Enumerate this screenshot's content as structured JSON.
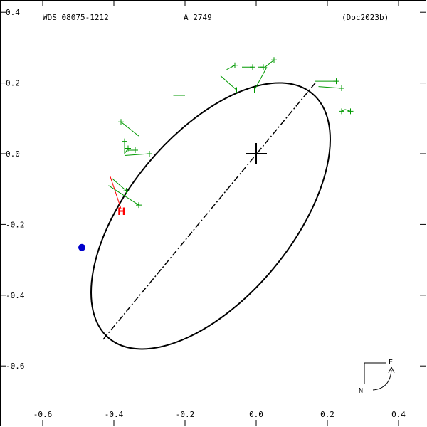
{
  "header": {
    "left": "WDS 08075-1212",
    "center": "A  2749",
    "right": "(Doc2023b)"
  },
  "compass": {
    "east_label": "E",
    "north_label": "N"
  },
  "colors": {
    "orbit": "#000000",
    "observation": "#009900",
    "highlight": "#ff0000",
    "periastron": "#0000cc"
  },
  "chart_data": {
    "type": "scatter",
    "xlim": [
      -0.6,
      0.4
    ],
    "ylim": [
      -0.7,
      0.4
    ],
    "x_tick_labels": [
      "-0.6",
      "-0.4",
      "-0.2",
      "0.0",
      "0.2",
      "0.4"
    ],
    "x_tick_values": [
      -0.6,
      -0.4,
      -0.2,
      0.0,
      0.2,
      0.4
    ],
    "y_tick_labels": [
      "0.4",
      "0.2",
      "0.0",
      "-0.2",
      "-0.4",
      "-0.6"
    ],
    "y_tick_values": [
      0.4,
      0.2,
      0.0,
      -0.2,
      -0.4,
      -0.6
    ],
    "primary_star": [
      0.0,
      0.0
    ],
    "orbit_ellipse": {
      "center": [
        -0.128,
        -0.176
      ],
      "semi_major": 0.447,
      "semi_minor": 0.23,
      "tilt_deg": 50.3
    },
    "line_of_nodes": {
      "start": [
        -0.43,
        -0.525
      ],
      "end": [
        0.17,
        0.205
      ]
    },
    "periastron": [
      -0.49,
      -0.265
    ],
    "observations": [
      {
        "obs": [
          -0.06,
          0.25
        ],
        "fit": [
          -0.083,
          0.238
        ]
      },
      {
        "obs": [
          -0.055,
          0.18
        ],
        "fit": [
          -0.1,
          0.22
        ]
      },
      {
        "obs": [
          -0.01,
          0.245
        ],
        "fit": [
          -0.04,
          0.245
        ]
      },
      {
        "obs": [
          0.02,
          0.245
        ],
        "fit": [
          0.005,
          0.245
        ]
      },
      {
        "obs": [
          0.05,
          0.265
        ],
        "fit": [
          0.025,
          0.245
        ]
      },
      {
        "obs": [
          -0.005,
          0.18
        ],
        "fit": [
          0.03,
          0.245
        ]
      },
      {
        "obs": [
          -0.225,
          0.165
        ],
        "fit": [
          -0.2,
          0.165
        ]
      },
      {
        "obs": [
          0.225,
          0.205
        ],
        "fit": [
          0.165,
          0.205
        ]
      },
      {
        "obs": [
          0.24,
          0.185
        ],
        "fit": [
          0.175,
          0.19
        ]
      },
      {
        "obs": [
          0.24,
          0.12
        ],
        "fit": [
          0.25,
          0.125
        ]
      },
      {
        "obs": [
          0.265,
          0.12
        ],
        "fit": [
          0.25,
          0.125
        ]
      },
      {
        "obs": [
          -0.38,
          0.09
        ],
        "fit": [
          -0.33,
          0.05
        ]
      },
      {
        "obs": [
          -0.37,
          0.035
        ],
        "fit": [
          -0.37,
          0.0
        ]
      },
      {
        "obs": [
          -0.34,
          0.01
        ],
        "fit": [
          -0.36,
          0.01
        ]
      },
      {
        "obs": [
          -0.36,
          0.015
        ],
        "fit": [
          -0.37,
          0.0
        ]
      },
      {
        "obs": [
          -0.3,
          0.0
        ],
        "fit": [
          -0.37,
          -0.005
        ]
      },
      {
        "obs": [
          -0.365,
          -0.105
        ],
        "fit": [
          -0.405,
          -0.07
        ]
      },
      {
        "obs": [
          -0.33,
          -0.145
        ],
        "fit": [
          -0.415,
          -0.09
        ]
      }
    ],
    "highlight_label": "H",
    "highlight": {
      "obs": [
        -0.38,
        -0.155
      ],
      "fit": [
        -0.41,
        -0.065
      ]
    }
  }
}
